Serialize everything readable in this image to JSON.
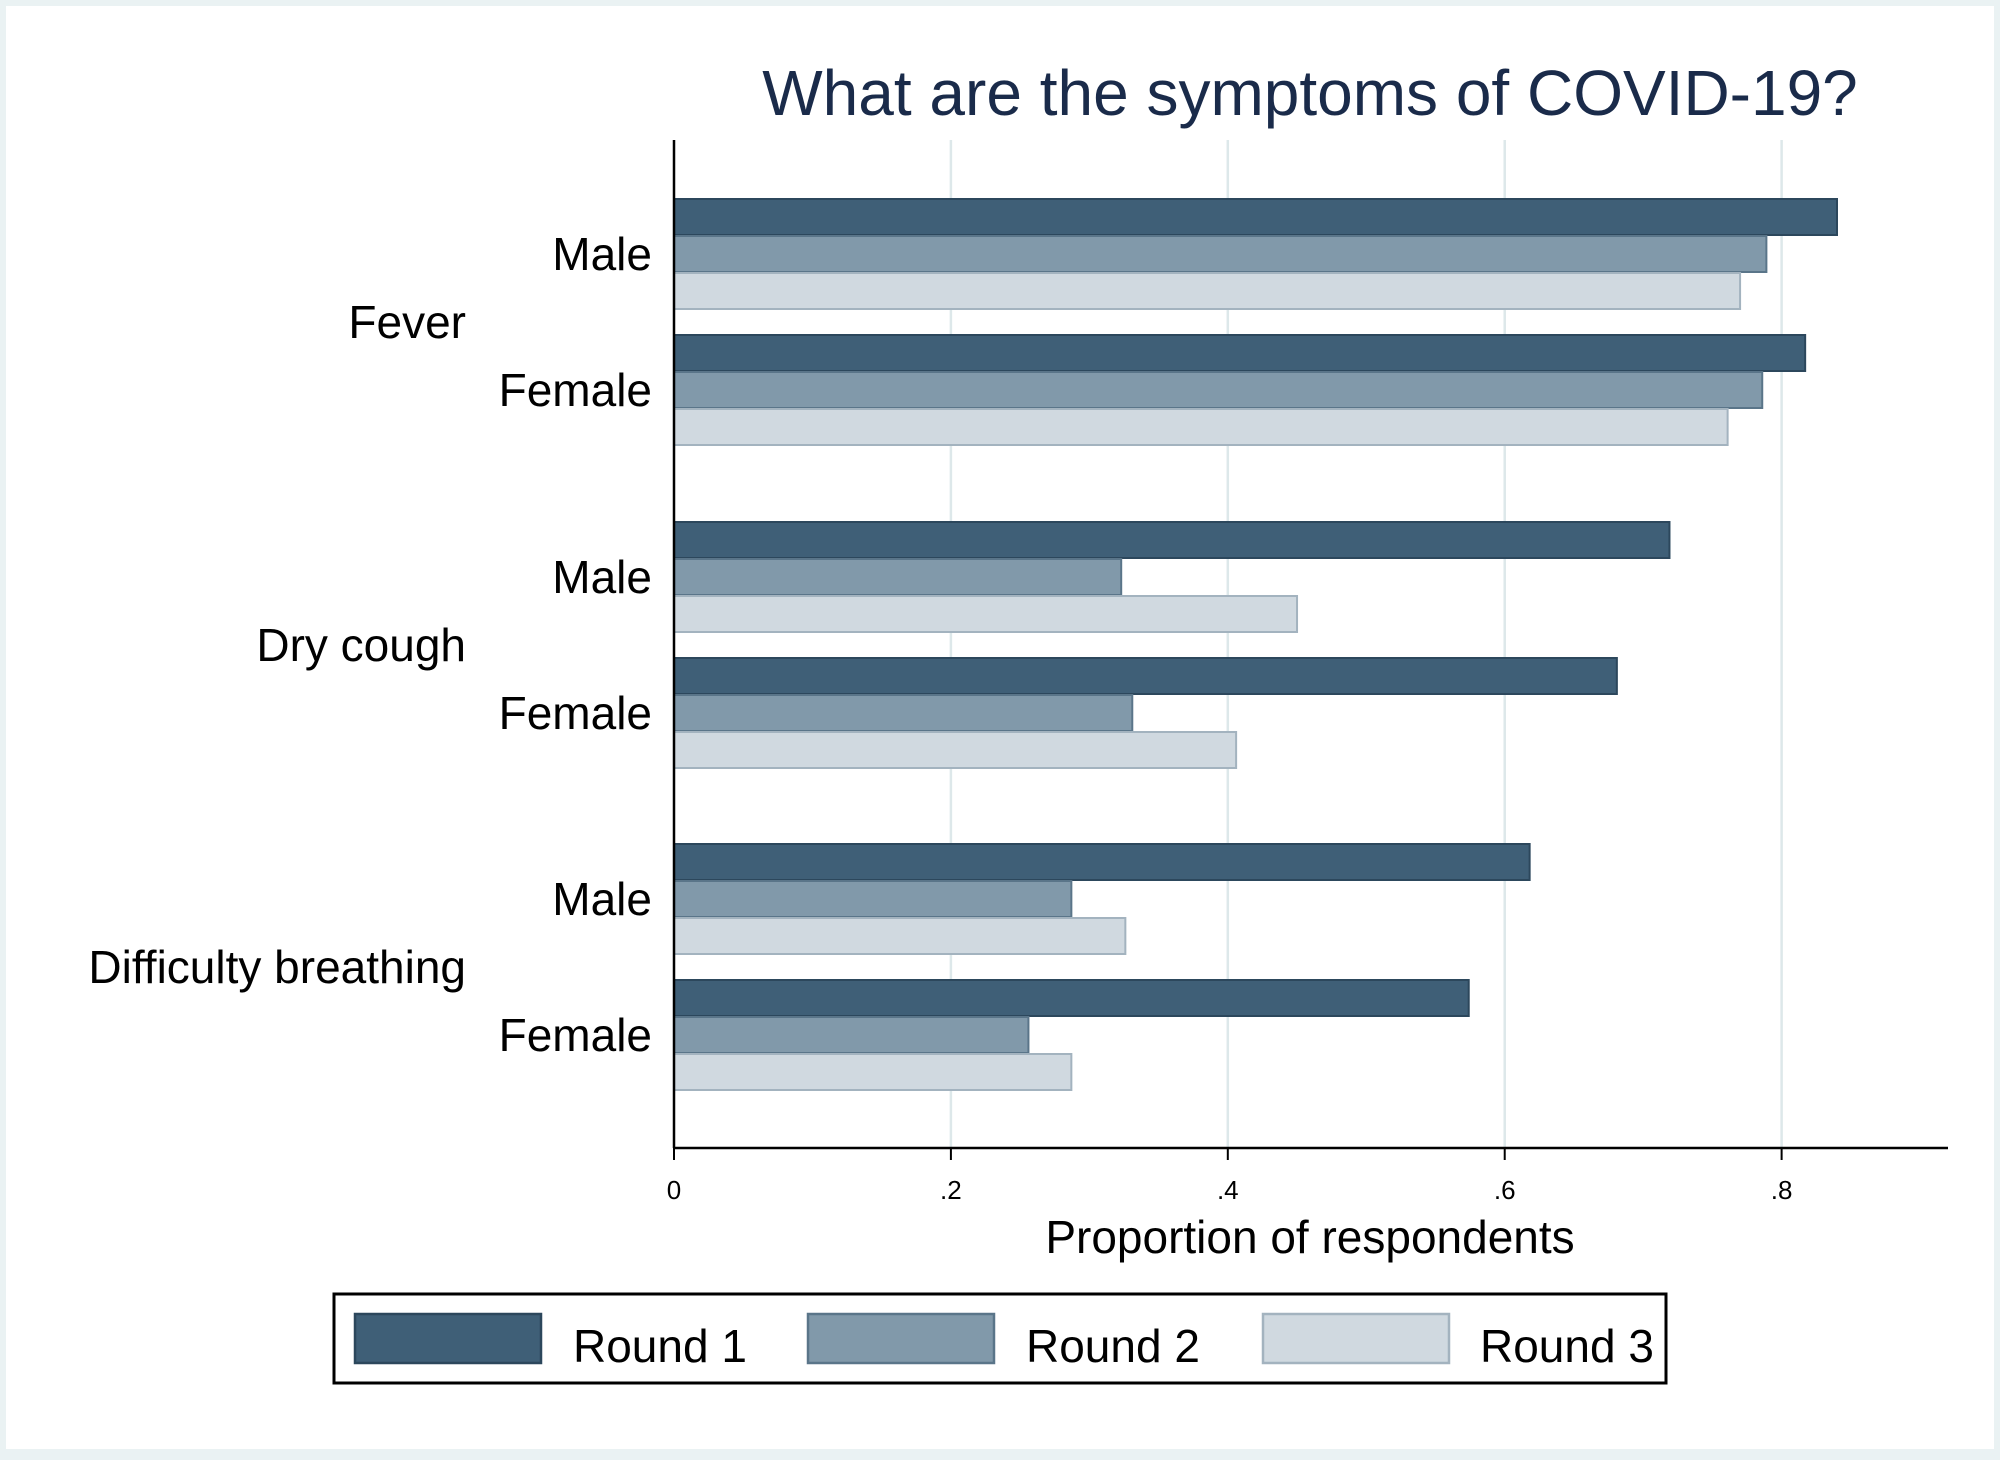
{
  "chart_data": {
    "type": "bar",
    "orientation": "horizontal",
    "title": "What are the symptoms of COVID-19?",
    "xlabel": "Proportion of respondents",
    "ylabel": "",
    "xlim": [
      0,
      0.875
    ],
    "x_ticks": [
      {
        "value": 0,
        "label": "0"
      },
      {
        "value": 0.2,
        "label": ".2"
      },
      {
        "value": 0.4,
        "label": ".4"
      },
      {
        "value": 0.6,
        "label": ".6"
      },
      {
        "value": 0.8,
        "label": ".8"
      }
    ],
    "grid": true,
    "legend_position": "bottom",
    "colors": {
      "background": "#eaf2f3",
      "plot_background": "#ffffff",
      "grid": "#dde8ea",
      "title": "#1a2b4a",
      "text": "#000000"
    },
    "series": [
      {
        "name": "Round 1",
        "color": "#3f5f77",
        "stroke": "#2c475c"
      },
      {
        "name": "Round 2",
        "color": "#8199aa",
        "stroke": "#5a7589"
      },
      {
        "name": "Round 3",
        "color": "#d0d9e0",
        "stroke": "#a3b3bf"
      }
    ],
    "groups": [
      {
        "label": "Fever",
        "subgroups": [
          {
            "label": "Male",
            "values": [
              0.84,
              0.789,
              0.77
            ]
          },
          {
            "label": "Female",
            "values": [
              0.817,
              0.786,
              0.761
            ]
          }
        ]
      },
      {
        "label": "Dry cough",
        "subgroups": [
          {
            "label": "Male",
            "values": [
              0.719,
              0.323,
              0.45
            ]
          },
          {
            "label": "Female",
            "values": [
              0.681,
              0.331,
              0.406
            ]
          }
        ]
      },
      {
        "label": "Difficulty breathing",
        "subgroups": [
          {
            "label": "Male",
            "values": [
              0.618,
              0.287,
              0.326
            ]
          },
          {
            "label": "Female",
            "values": [
              0.574,
              0.256,
              0.287
            ]
          }
        ]
      }
    ]
  }
}
